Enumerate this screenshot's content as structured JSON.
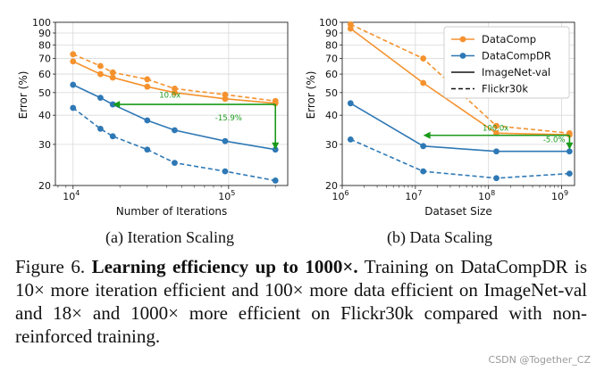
{
  "colors": {
    "orange": "#f5922e",
    "blue": "#2e78b5",
    "green": "#1a9a1a",
    "grid": "#d9d9d9"
  },
  "chart_data": [
    {
      "type": "line",
      "id": "iteration",
      "title": "(a) Iteration Scaling",
      "xlabel": "Number of Iterations",
      "ylabel": "Error (%)",
      "xscale": "log",
      "yscale": "log",
      "xlim": [
        7700,
        240000
      ],
      "ylim": [
        20,
        100
      ],
      "xticks": [
        {
          "v": 10000,
          "base": "10",
          "exp": "4"
        },
        {
          "v": 100000,
          "base": "10",
          "exp": "5"
        }
      ],
      "yticks": [
        20,
        30,
        40,
        50,
        60,
        70,
        80,
        90,
        100
      ],
      "grid": true,
      "series": [
        {
          "name": "DataComp ImageNet-val",
          "color": "orange",
          "dash": false,
          "x": [
            10000,
            15000,
            18000,
            30000,
            45000,
            95000,
            200000
          ],
          "y": [
            68,
            60,
            58,
            53,
            50,
            47,
            45
          ]
        },
        {
          "name": "DataComp Flickr30k",
          "color": "orange",
          "dash": true,
          "x": [
            10000,
            15000,
            18000,
            30000,
            45000,
            95000,
            200000
          ],
          "y": [
            73,
            65,
            61,
            57,
            52,
            49,
            46
          ]
        },
        {
          "name": "DataCompDR ImageNet-val",
          "color": "blue",
          "dash": false,
          "x": [
            10000,
            15000,
            18000,
            30000,
            45000,
            95000,
            200000
          ],
          "y": [
            54,
            47.5,
            44.5,
            38,
            34.5,
            31,
            28.5
          ]
        },
        {
          "name": "DataCompDR Flickr30k",
          "color": "blue",
          "dash": true,
          "x": [
            10000,
            15000,
            18000,
            30000,
            45000,
            95000,
            200000
          ],
          "y": [
            43,
            35,
            32.5,
            28.5,
            25,
            23,
            21
          ]
        }
      ],
      "annotations": [
        {
          "kind": "harrow",
          "x1": 200000,
          "x2": 18000,
          "y": 44.5,
          "label": "10.0x",
          "label_x": 42000,
          "label_y": 47.5
        },
        {
          "kind": "varrow",
          "x": 200000,
          "y1": 44.5,
          "y2": 28.5,
          "label": "-15.9%",
          "label_x": 100000,
          "label_y": 38
        }
      ]
    },
    {
      "type": "line",
      "id": "data",
      "title": "(b) Data Scaling",
      "xlabel": "Dataset Size",
      "ylabel": "Error (%)",
      "xscale": "log",
      "yscale": "log",
      "xlim": [
        1000000,
        1500000000
      ],
      "ylim": [
        20,
        100
      ],
      "xticks": [
        {
          "v": 1000000,
          "base": "10",
          "exp": "6"
        },
        {
          "v": 10000000,
          "base": "10",
          "exp": "7"
        },
        {
          "v": 100000000,
          "base": "10",
          "exp": "8"
        },
        {
          "v": 1000000000,
          "base": "10",
          "exp": "9"
        }
      ],
      "yticks": [
        20,
        30,
        40,
        50,
        60,
        70,
        80,
        90,
        100
      ],
      "grid": true,
      "series": [
        {
          "name": "DataComp ImageNet-val",
          "color": "orange",
          "dash": false,
          "x": [
            1300000,
            12800000,
            128000000,
            1280000000
          ],
          "y": [
            94,
            55,
            33.5,
            33
          ]
        },
        {
          "name": "DataComp Flickr30k",
          "color": "orange",
          "dash": true,
          "x": [
            1300000,
            12800000,
            128000000,
            1280000000
          ],
          "y": [
            98,
            70,
            36,
            33.5
          ]
        },
        {
          "name": "DataCompDR ImageNet-val",
          "color": "blue",
          "dash": false,
          "x": [
            1300000,
            12800000,
            128000000,
            1280000000
          ],
          "y": [
            45,
            29.5,
            28,
            28
          ]
        },
        {
          "name": "DataCompDR Flickr30k",
          "color": "blue",
          "dash": true,
          "x": [
            1300000,
            12800000,
            128000000,
            1280000000
          ],
          "y": [
            31.5,
            23,
            21.5,
            22.5
          ]
        }
      ],
      "legend": {
        "placement": "upper-right",
        "entries": [
          {
            "label": "DataComp",
            "kind": "marker",
            "color": "orange"
          },
          {
            "label": "DataCompDR",
            "kind": "marker",
            "color": "blue"
          },
          {
            "label": "ImageNet-val",
            "kind": "solid"
          },
          {
            "label": "Flickr30k",
            "kind": "dashed"
          }
        ]
      },
      "annotations": [
        {
          "kind": "harrow",
          "x1": 1280000000,
          "x2": 12800000,
          "y": 32.8,
          "label": "100.0x",
          "label_x": 125000000,
          "label_y": 34.3
        },
        {
          "kind": "varrow",
          "x": 1280000000,
          "y1": 32.8,
          "y2": 28.5,
          "label": "-5.0%",
          "label_x": 790000000,
          "label_y": 30.6
        }
      ]
    }
  ],
  "figure": {
    "subcaption_a": "(a) Iteration Scaling",
    "subcaption_b": "(b) Data Scaling",
    "caption_label": "Figure 6.",
    "caption_title": "Learning efficiency up to 1000×.",
    "caption_body": "Training on DataCompDR is 10× more iteration efficient and 100× more data efficient on ImageNet-val and 18× and 1000× more efficient on Flickr30k compared with non-reinforced training."
  },
  "watermark": "CSDN @Together_CZ"
}
